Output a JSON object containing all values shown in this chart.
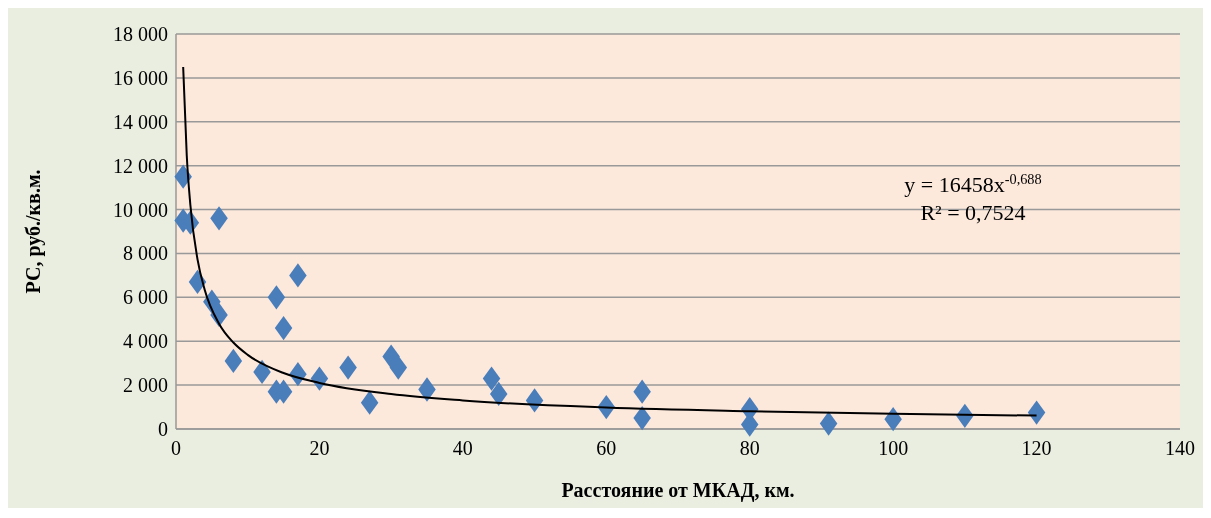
{
  "chart_data": {
    "type": "scatter",
    "xlabel": "Расстояние от МКАД, км.",
    "ylabel": "РС, руб./кв.м.",
    "xlim": [
      0,
      140
    ],
    "xticks": [
      0,
      20,
      40,
      60,
      80,
      100,
      120,
      140
    ],
    "ylim": [
      0,
      18000
    ],
    "yticks": [
      0,
      {
        "value": 2000,
        "label": "2 000"
      },
      {
        "value": 4000,
        "label": "4 000"
      },
      {
        "value": 6000,
        "label": "6 000"
      },
      {
        "value": 8000,
        "label": "8 000"
      },
      {
        "value": 10000,
        "label": "10 000"
      },
      {
        "value": 12000,
        "label": "12 000"
      },
      {
        "value": 14000,
        "label": "14 000"
      },
      {
        "value": 16000,
        "label": "16 000"
      },
      {
        "value": 18000,
        "label": "18 000"
      }
    ],
    "grid": "y",
    "series": [
      {
        "color": "#4a7ebb",
        "marker": "diamond",
        "x": [
          1,
          1,
          2,
          6,
          3,
          5,
          6,
          8,
          12,
          14,
          15,
          14,
          15,
          17,
          17,
          20,
          24,
          27,
          30,
          31,
          35,
          44,
          45,
          50,
          60,
          65,
          65,
          80,
          80,
          91,
          100,
          110,
          120
        ],
        "values": [
          11500,
          9500,
          9400,
          9600,
          6700,
          5800,
          5200,
          3100,
          2600,
          1700,
          1700,
          6000,
          4600,
          7000,
          2500,
          2300,
          2800,
          1200,
          3300,
          2800,
          1800,
          2300,
          1600,
          1300,
          1000,
          1700,
          500,
          900,
          200,
          250,
          450,
          600,
          750
        ]
      },
      {
        "type": "line",
        "color": "#000000",
        "marker": "none",
        "line_style": "solid",
        "x": [
          1,
          1.5,
          2,
          3,
          4,
          6,
          8,
          10,
          15,
          20,
          30,
          40,
          60,
          80,
          100,
          120
        ],
        "values": [
          16500,
          12460,
          10220,
          7730,
          6350,
          4800,
          3940,
          3380,
          2550,
          2100,
          1590,
          1300,
          980,
          810,
          690,
          610
        ]
      }
    ],
    "annotations": [
      "y = 16458x$^{-0,688}$",
      "R² = 0,7524"
    ]
  }
}
